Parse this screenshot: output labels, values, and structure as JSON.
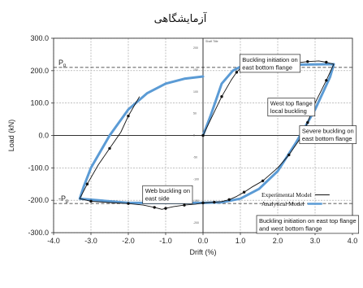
{
  "title": "آزمایشگاهی",
  "chart_data": {
    "type": "line",
    "xlabel": "Drift (%)",
    "ylabel": "Load (kN)",
    "xlim": [
      -4.0,
      4.0
    ],
    "ylim": [
      -300.0,
      300.0
    ],
    "x_ticks": [
      "-4.0",
      "-3.0",
      "-2.0",
      "-1.0",
      "0.0",
      "1.0",
      "2.0",
      "3.0",
      "4.0"
    ],
    "y_ticks": [
      "300.0",
      "200.0",
      "100.0",
      "0.0",
      "-100.0",
      "-200.0",
      "-300.0"
    ],
    "grid": true,
    "reference_lines": [
      {
        "label": "P",
        "subscript": "p",
        "y": 210
      },
      {
        "label": "-P",
        "subscript": "p",
        "y": -210
      }
    ],
    "inner_axis_label": "Shaft Title",
    "inner_axis_ticks": [
      "200",
      "150",
      "100",
      "50",
      "0",
      "-50",
      "-100",
      "-150",
      "-200"
    ],
    "legend": {
      "placement": "lower-right",
      "entries": [
        "Experimental Model",
        "Analytical Model"
      ]
    },
    "series": [
      {
        "name": "Experimental Model",
        "color": "#111111",
        "x": [
          0.0,
          0.25,
          0.5,
          0.75,
          0.9,
          1.0,
          1.2,
          1.5,
          2.0,
          2.5,
          2.8,
          3.1,
          3.3,
          3.5,
          3.3,
          3.0,
          2.8,
          2.6,
          2.3,
          2.0,
          1.6,
          1.3,
          1.1,
          0.9,
          0.7,
          0.5,
          0.3,
          0.1,
          0.0,
          -0.2,
          -0.5,
          -0.8,
          -1.0,
          -1.1,
          -1.3,
          -1.6,
          -2.0,
          -2.5,
          -3.0,
          -3.3,
          -3.1,
          -2.8,
          -2.5,
          -2.2,
          -2.0,
          -1.7
        ],
        "y": [
          0,
          60,
          120,
          170,
          195,
          207,
          212,
          215,
          220,
          224,
          228,
          230,
          226,
          220,
          170,
          100,
          40,
          -10,
          -60,
          -100,
          -140,
          -160,
          -175,
          -188,
          -198,
          -204,
          -206,
          -207,
          -208,
          -212,
          -215,
          -220,
          -225,
          -228,
          -222,
          -215,
          -210,
          -207,
          -203,
          -195,
          -150,
          -90,
          -40,
          10,
          60,
          120
        ]
      },
      {
        "name": "Analytical Model",
        "color": "#5b9bd5",
        "x": [
          0.0,
          0.2,
          0.5,
          0.8,
          1.0,
          1.5,
          2.0,
          3.5,
          3.4,
          3.0,
          2.5,
          2.0,
          1.5,
          1.0,
          0.5,
          0.0,
          -0.5,
          -1.0,
          -2.0,
          -3.3,
          -3.2,
          -3.0,
          -2.5,
          -2.0,
          -1.5,
          -1.0,
          -0.5,
          0.0
        ],
        "y": [
          0,
          60,
          160,
          200,
          212,
          216,
          218,
          220,
          180,
          80,
          -20,
          -110,
          -165,
          -195,
          -206,
          -208,
          -208,
          -208,
          -208,
          -195,
          -160,
          -100,
          0,
          80,
          130,
          160,
          175,
          182
        ]
      }
    ],
    "annotations": [
      {
        "lines": [
          "Buckling initiation on",
          "east bottom flange"
        ],
        "x": 1.05,
        "y": 245
      },
      {
        "lines": [
          "West top flange",
          "local buckling"
        ],
        "x": 1.8,
        "y": 110
      },
      {
        "lines": [
          "Severe buckling on",
          "east bottom flange"
        ],
        "x": 2.65,
        "y": 25
      },
      {
        "lines": [
          "Web buckling on",
          "east side"
        ],
        "x": -1.55,
        "y": -160
      },
      {
        "lines": [
          "Buckling initiation on east top flange",
          "and west bottom flange"
        ],
        "x": 1.5,
        "y": -252
      }
    ]
  }
}
